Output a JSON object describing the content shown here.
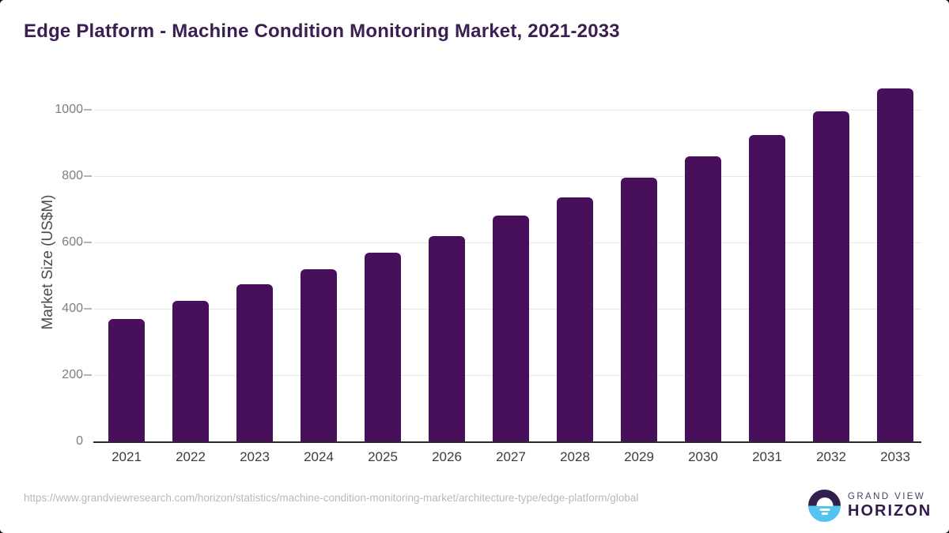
{
  "chart_data": {
    "type": "bar",
    "title": "Edge Platform - Machine Condition Monitoring Market, 2021-2033",
    "categories": [
      "2021",
      "2022",
      "2023",
      "2024",
      "2025",
      "2026",
      "2027",
      "2028",
      "2029",
      "2030",
      "2031",
      "2032",
      "2033"
    ],
    "values": [
      370,
      425,
      475,
      520,
      570,
      620,
      680,
      735,
      795,
      860,
      925,
      995,
      1065
    ],
    "unit": "US$M",
    "xlabel": "",
    "ylabel": "Market Size (US$M)",
    "ylim": [
      0,
      1100
    ],
    "y_ticks": [
      0,
      200,
      400,
      600,
      800,
      1000
    ],
    "grid": "horizontal-light",
    "legend": "none",
    "bar_color": "#48105a"
  },
  "footer": {
    "source_url": "https://www.grandviewresearch.com/horizon/statistics/machine-condition-monitoring-market/architecture-type/edge-platform/global",
    "logo": {
      "brand_line1": "GRAND VIEW",
      "brand_line2": "HORIZON"
    }
  },
  "colors": {
    "title": "#3b1e52",
    "bar": "#48105a",
    "axis_line": "#2b2b2b",
    "gridline": "#e7e7e7",
    "y_tick_text": "#7d7d7d",
    "x_tick_text": "#3d3d3d",
    "url_text": "#b9b9b9",
    "logo_circle_top": "#32204c",
    "logo_circle_bottom": "#55c3f0",
    "logo_text": "#34194e"
  }
}
